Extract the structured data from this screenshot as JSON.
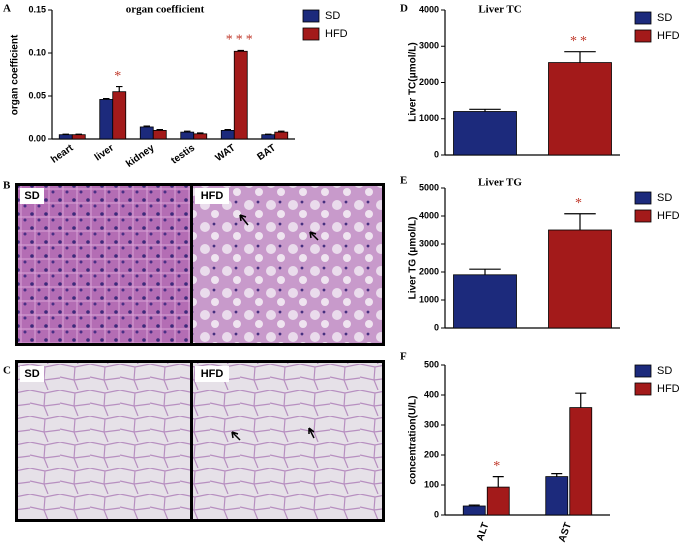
{
  "chart_data": [
    {
      "type": "bar",
      "title": "organ coefficient",
      "ylabel": "organ coefficient",
      "categories": [
        "heart",
        "liver",
        "kidney",
        "testis",
        "WAT",
        "BAT"
      ],
      "series": [
        {
          "name": "SD",
          "color": "#1c2a7c",
          "values": [
            0.005,
            0.046,
            0.014,
            0.008,
            0.01,
            0.005
          ],
          "errors": [
            0.0005,
            0.001,
            0.001,
            0.001,
            0.001,
            0.0005
          ]
        },
        {
          "name": "HFD",
          "color": "#a31a1a",
          "values": [
            0.005,
            0.055,
            0.01,
            0.006,
            0.102,
            0.008
          ],
          "errors": [
            0.0005,
            0.006,
            0.001,
            0.001,
            0.001,
            0.001
          ]
        }
      ],
      "ylim": [
        0,
        0.15
      ],
      "yticks": [
        {
          "value": 0,
          "label": "0.00"
        },
        {
          "value": 0.05,
          "label": "0.05"
        },
        {
          "value": 0.1,
          "label": "0.10"
        },
        {
          "value": 0.15,
          "label": "0.15"
        }
      ],
      "annotations": [
        "*",
        "***"
      ]
    },
    {
      "type": "bar",
      "title": "Liver TC",
      "ylabel": "Liver TC(μmol/L)",
      "categories": [
        null
      ],
      "series": [
        {
          "name": "SD",
          "color": "#1c2a7c",
          "values": [
            1200
          ],
          "errors": [
            60
          ]
        },
        {
          "name": "HFD",
          "color": "#a31a1a",
          "values": [
            2550
          ],
          "errors": [
            300
          ]
        }
      ],
      "ylim": [
        0,
        4000
      ],
      "yticks": [
        0,
        1000,
        2000,
        3000,
        4000
      ],
      "annotations": [
        "**"
      ]
    },
    {
      "type": "bar",
      "title": "Liver  TG",
      "ylabel": "Liver TG (μmol/L)",
      "categories": [
        null
      ],
      "series": [
        {
          "name": "SD",
          "color": "#1c2a7c",
          "values": [
            1900
          ],
          "errors": [
            200
          ]
        },
        {
          "name": "HFD",
          "color": "#a31a1a",
          "values": [
            3500
          ],
          "errors": [
            580
          ]
        }
      ],
      "ylim": [
        0,
        5000
      ],
      "yticks": [
        0,
        1000,
        2000,
        3000,
        4000,
        5000
      ],
      "annotations": [
        "*"
      ]
    },
    {
      "type": "bar",
      "ylabel": "concentration(U/L)",
      "categories": [
        "ALT",
        "AST"
      ],
      "series": [
        {
          "name": "SD",
          "color": "#1c2a7c",
          "values": [
            30,
            128
          ],
          "errors": [
            3,
            10
          ]
        },
        {
          "name": "HFD",
          "color": "#a31a1a",
          "values": [
            93,
            358
          ],
          "errors": [
            35,
            48
          ]
        }
      ],
      "ylim": [
        0,
        500
      ],
      "yticks": [
        0,
        100,
        200,
        300,
        400,
        500
      ],
      "annotations": [
        "*"
      ]
    }
  ],
  "panels": {
    "letters": [
      "A",
      "D",
      "E",
      "F",
      "B",
      "C"
    ],
    "histology_b": [
      "SD",
      "HFD"
    ],
    "histology_c": [
      "SD",
      "HFD"
    ]
  }
}
